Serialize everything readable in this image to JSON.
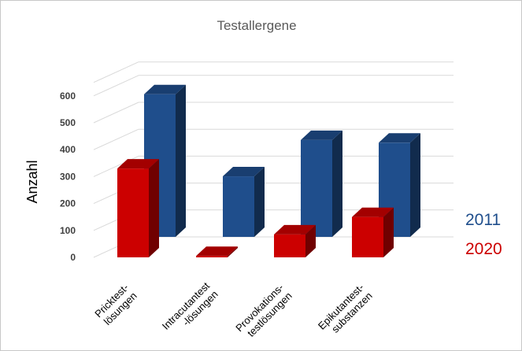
{
  "chart_data": {
    "type": "bar",
    "title": "Testallergene",
    "ylabel": "Anzahl",
    "xlabel": "",
    "ylim": [
      0,
      650
    ],
    "yticks": [
      0,
      100,
      200,
      300,
      400,
      500,
      600
    ],
    "grid": true,
    "legend": "right",
    "categories": [
      [
        "Pricktest-",
        "lösungen"
      ],
      [
        "Intracutantest",
        "-lösungen"
      ],
      [
        "Provokations-",
        "testlösungen"
      ],
      [
        "Epikutantest-",
        "substanzen"
      ]
    ],
    "series": [
      {
        "name": "2011",
        "color": "#1f4e8c",
        "values": [
          530,
          225,
          360,
          350
        ]
      },
      {
        "name": "2020",
        "color": "#cc0000",
        "values": [
          330,
          5,
          85,
          150
        ]
      }
    ]
  }
}
